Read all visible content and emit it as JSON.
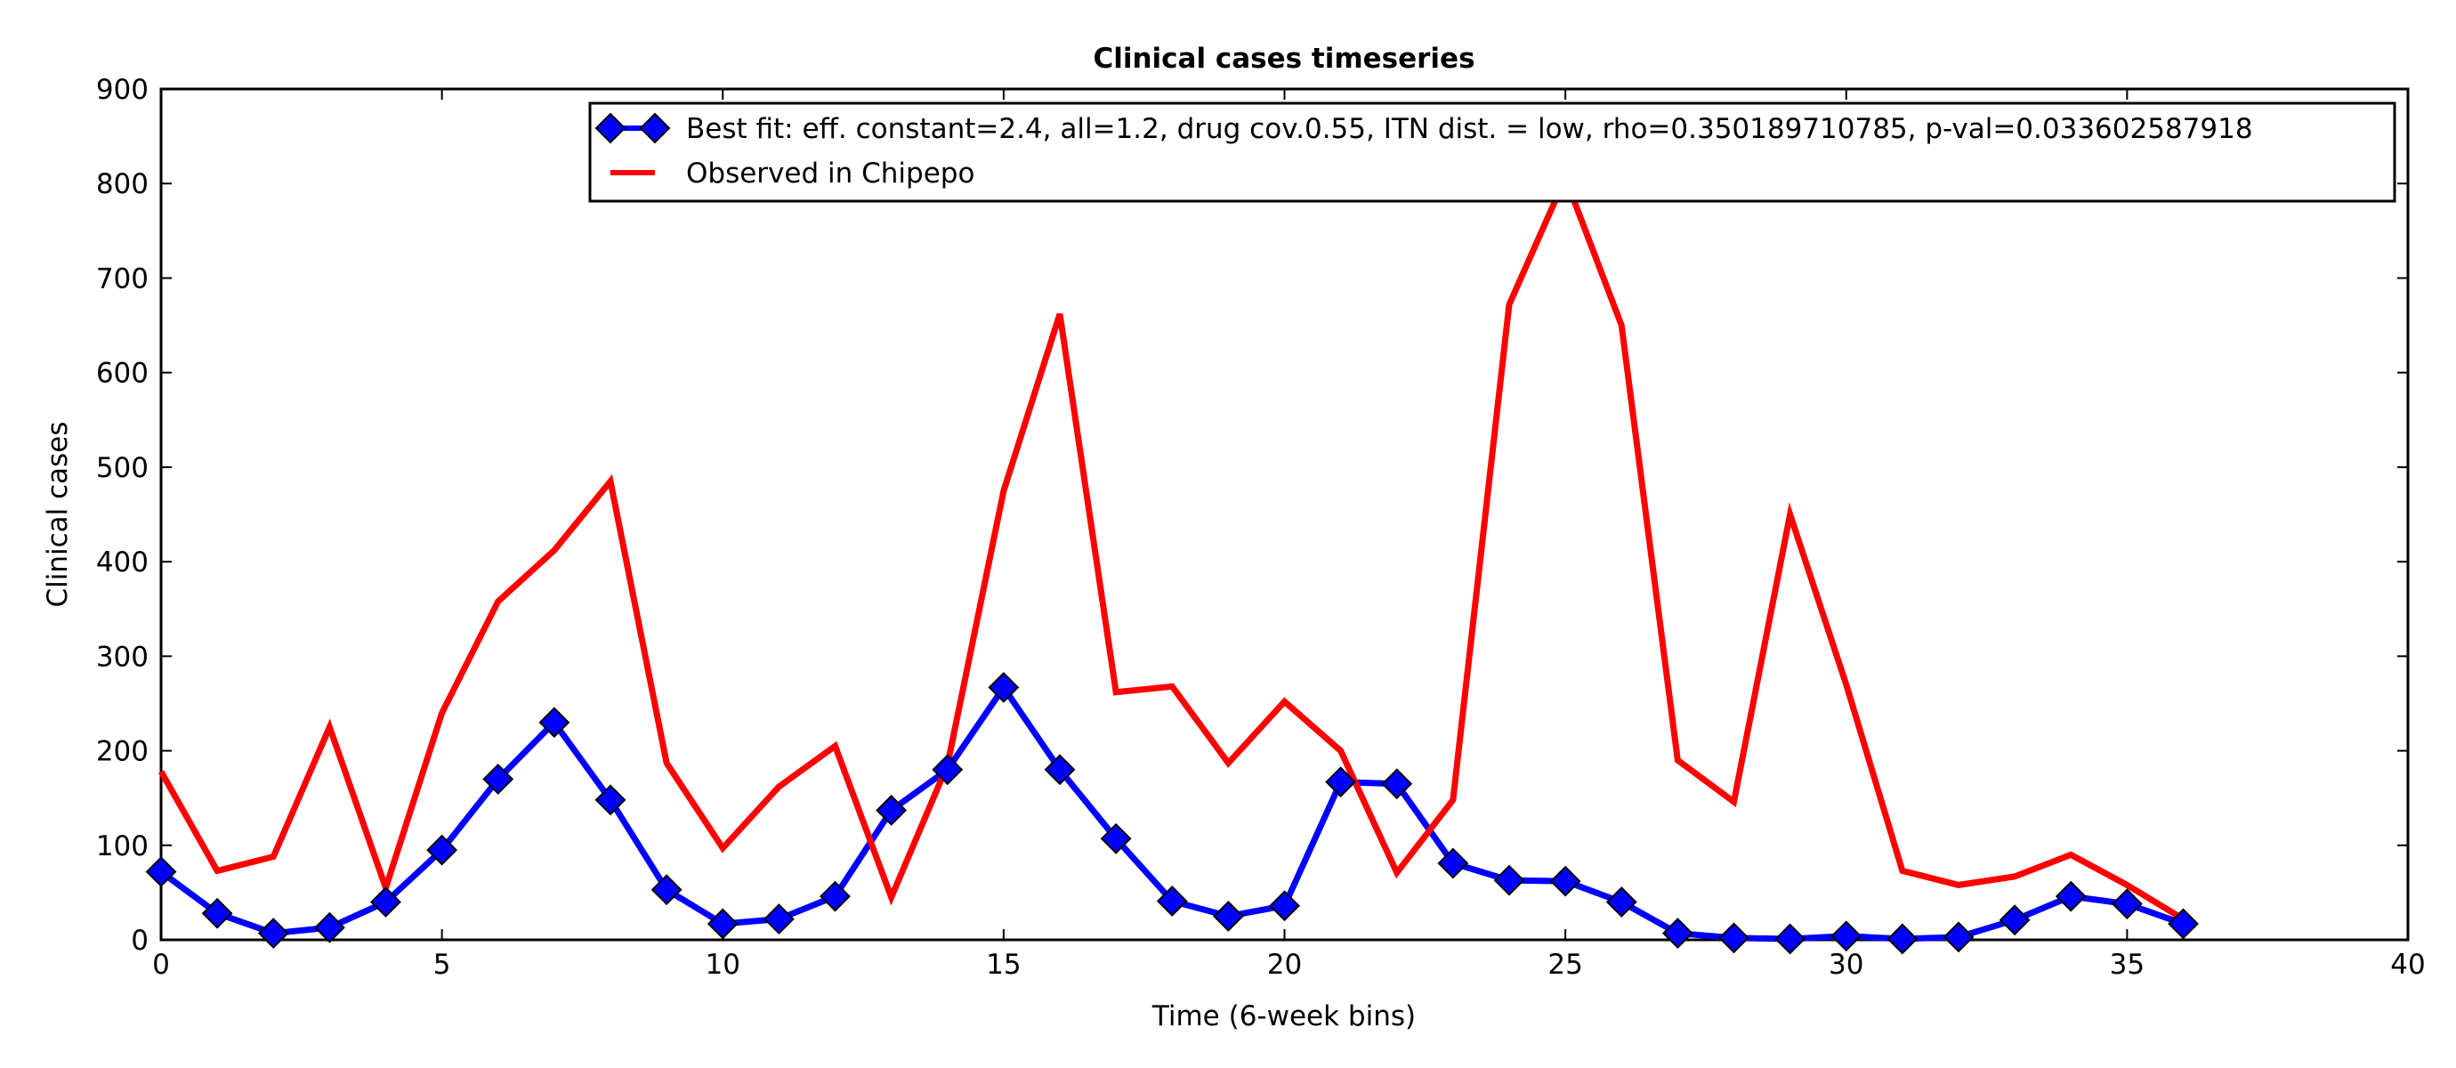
{
  "chart_data": {
    "type": "line",
    "title": "Clinical cases timeseries",
    "xlabel": "Time (6-week bins)",
    "ylabel": "Clinical cases",
    "xlim": [
      0,
      40
    ],
    "ylim": [
      0,
      900
    ],
    "xticks": [
      0,
      5,
      10,
      15,
      20,
      25,
      30,
      35,
      40
    ],
    "yticks": [
      0,
      100,
      200,
      300,
      400,
      500,
      600,
      700,
      800,
      900
    ],
    "grid": false,
    "legend_position": "top-right",
    "series": [
      {
        "name": "Best fit: eff. constant=2.4, all=1.2, drug cov.0.55, ITN dist. = low, rho=0.350189710785, p-val=0.033602587918",
        "color": "#0000ff",
        "marker": "diamond",
        "x": [
          0,
          1,
          2,
          3,
          4,
          5,
          6,
          7,
          8,
          9,
          10,
          11,
          12,
          13,
          14,
          15,
          16,
          17,
          18,
          19,
          20,
          21,
          22,
          23,
          24,
          25,
          26,
          27,
          28,
          29,
          30,
          31,
          32,
          33,
          34,
          35,
          36
        ],
        "values": [
          72,
          28,
          7,
          13,
          40,
          95,
          170,
          230,
          148,
          53,
          17,
          22,
          46,
          137,
          180,
          267,
          180,
          107,
          41,
          25,
          36,
          167,
          165,
          81,
          63,
          62,
          40,
          7,
          2,
          1,
          4,
          1,
          3,
          21,
          46,
          38,
          17
        ]
      },
      {
        "name": "Observed in Chipepo",
        "color": "#ff0000",
        "marker": "none",
        "x": [
          0,
          1,
          2,
          3,
          4,
          5,
          6,
          7,
          8,
          9,
          10,
          11,
          12,
          13,
          14,
          15,
          16,
          17,
          18,
          19,
          20,
          21,
          22,
          23,
          24,
          25,
          26,
          27,
          28,
          29,
          30,
          31,
          32,
          33,
          34,
          35,
          36
        ],
        "values": [
          178,
          73,
          88,
          225,
          55,
          240,
          358,
          412,
          485,
          187,
          97,
          162,
          205,
          45,
          185,
          475,
          662,
          262,
          268,
          187,
          252,
          200,
          71,
          148,
          672,
          806,
          650,
          190,
          146,
          450,
          270,
          73,
          58,
          67,
          90,
          58,
          22
        ]
      }
    ]
  }
}
